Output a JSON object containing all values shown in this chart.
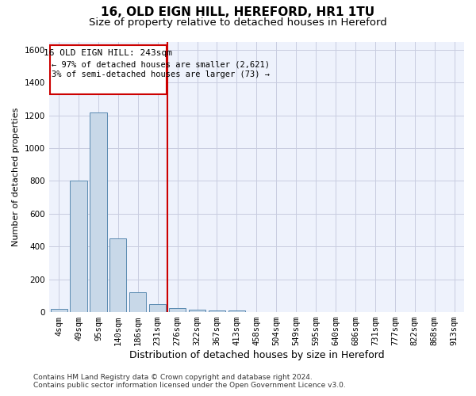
{
  "title1": "16, OLD EIGN HILL, HEREFORD, HR1 1TU",
  "title2": "Size of property relative to detached houses in Hereford",
  "xlabel": "Distribution of detached houses by size in Hereford",
  "ylabel": "Number of detached properties",
  "footer1": "Contains HM Land Registry data © Crown copyright and database right 2024.",
  "footer2": "Contains public sector information licensed under the Open Government Licence v3.0.",
  "annotation_line1": "16 OLD EIGN HILL: 243sqm",
  "annotation_line2": "← 97% of detached houses are smaller (2,621)",
  "annotation_line3": "3% of semi-detached houses are larger (73) →",
  "bar_labels": [
    "4sqm",
    "49sqm",
    "95sqm",
    "140sqm",
    "186sqm",
    "231sqm",
    "276sqm",
    "322sqm",
    "367sqm",
    "413sqm",
    "458sqm",
    "504sqm",
    "549sqm",
    "595sqm",
    "640sqm",
    "686sqm",
    "731sqm",
    "777sqm",
    "822sqm",
    "868sqm",
    "913sqm"
  ],
  "bar_values": [
    20,
    800,
    1220,
    450,
    120,
    50,
    25,
    15,
    10,
    10,
    0,
    0,
    0,
    0,
    0,
    0,
    0,
    0,
    0,
    0,
    0
  ],
  "bar_color": "#c8d8e8",
  "bar_edge_color": "#5a8ab0",
  "marker_index": 5,
  "marker_color": "#cc0000",
  "ylim": [
    0,
    1650
  ],
  "yticks": [
    0,
    200,
    400,
    600,
    800,
    1000,
    1200,
    1400,
    1600
  ],
  "grid_color": "#c8cce0",
  "bg_color": "#eef2fc",
  "annotation_box_color": "#cc0000",
  "title1_fontsize": 11,
  "title2_fontsize": 9.5,
  "xlabel_fontsize": 9,
  "ylabel_fontsize": 8,
  "tick_fontsize": 7.5,
  "footer_fontsize": 6.5
}
